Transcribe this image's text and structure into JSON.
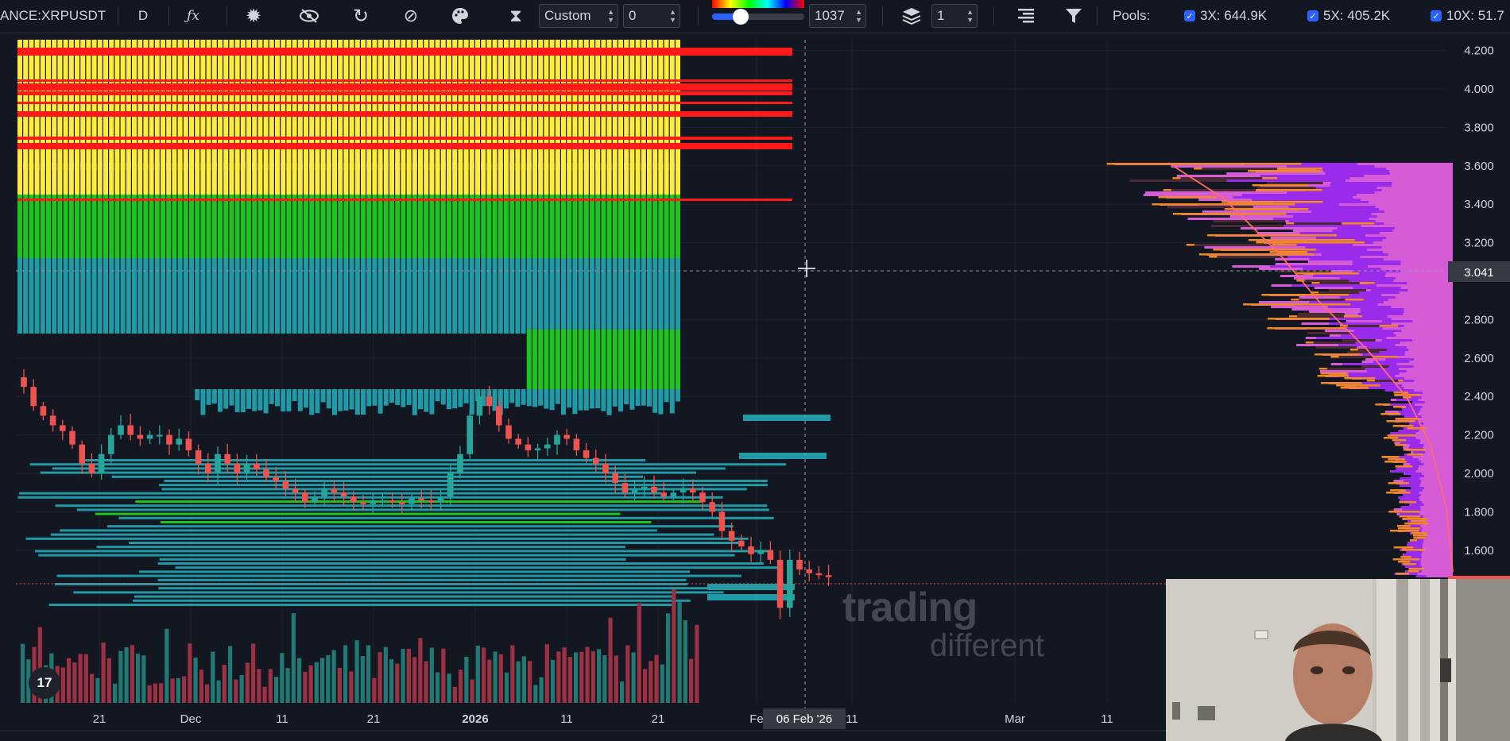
{
  "toolbar": {
    "symbol": "ANCE:XRPUSDT",
    "interval": "D",
    "indicators_icon": "function-icon",
    "mode_select": "Custom",
    "custom_value": "0",
    "slider_value": "1037",
    "layers_value": "1",
    "pools_label": "Pools:",
    "pools": [
      {
        "label": "3X: 644.9K",
        "checked": true
      },
      {
        "label": "5X: 405.2K",
        "checked": true
      },
      {
        "label": "10X: 51.7",
        "checked": true
      }
    ]
  },
  "price_axis": {
    "ticks": [
      "4.200",
      "4.000",
      "3.800",
      "3.600",
      "3.400",
      "3.200",
      "2.800",
      "2.600",
      "2.400",
      "2.200",
      "2.000",
      "1.800",
      "1.600"
    ],
    "crosshair_price": "3.041"
  },
  "time_axis": {
    "ticks": [
      "21",
      "Dec",
      "11",
      "21",
      "2026",
      "11",
      "21",
      "Fe",
      "11",
      "Mar",
      "11"
    ],
    "crosshair_date": "06 Feb '26"
  },
  "watermark": {
    "line1": "trading",
    "line2": "different"
  },
  "logo": {
    "text": "17"
  },
  "colors": {
    "background": "#131722",
    "bull": "#26a69a",
    "bear": "#ef5350",
    "heat_high": "#ffeb3b",
    "heat_mid": "#1cc51c",
    "heat_low": "#1f9aa6"
  }
}
